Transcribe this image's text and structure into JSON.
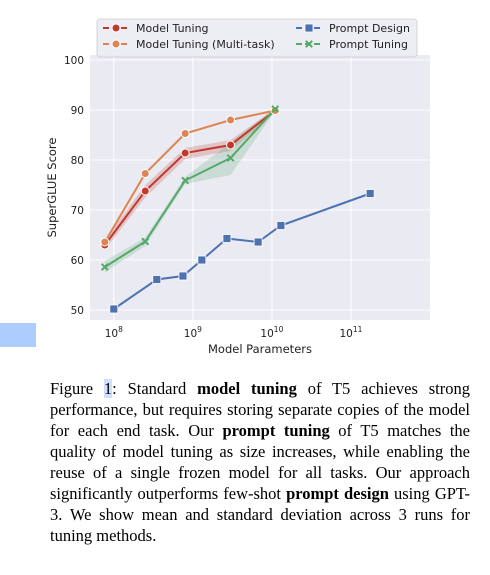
{
  "chart_data": {
    "type": "line",
    "xlabel": "Model Parameters",
    "ylabel": "SuperGLUE Score",
    "x_scale": "log",
    "xlim": [
      50000000,
      1000000000000
    ],
    "ylim": [
      48,
      101
    ],
    "x_ticks": [
      100000000,
      1000000000,
      10000000000,
      100000000000
    ],
    "x_tick_labels": [
      {
        "base": "10",
        "exp": "8"
      },
      {
        "base": "10",
        "exp": "9"
      },
      {
        "base": "10",
        "exp": "10"
      },
      {
        "base": "10",
        "exp": "11"
      }
    ],
    "y_ticks": [
      50,
      60,
      70,
      80,
      90,
      100
    ],
    "grid": true,
    "legend": "top",
    "series": [
      {
        "name": "Model Tuning",
        "color": "#c0392b",
        "marker": "circle",
        "x": [
          77000000,
          250000000,
          800000000,
          3000000000,
          11000000000
        ],
        "y": [
          63.0,
          73.8,
          81.4,
          83.0,
          89.9
        ],
        "band": [
          [
            62.0,
            64.0
          ],
          [
            72.5,
            75.0
          ],
          [
            80.2,
            82.4
          ],
          [
            81.8,
            84.0
          ],
          [
            89.5,
            90.2
          ]
        ]
      },
      {
        "name": "Model Tuning (Multi-task)",
        "color": "#dd8452",
        "marker": "circle",
        "x": [
          77000000,
          250000000,
          800000000,
          3000000000,
          11000000000
        ],
        "y": [
          63.6,
          77.3,
          85.3,
          88.0,
          89.9
        ],
        "band": null
      },
      {
        "name": "Prompt Design",
        "color": "#4c72b0",
        "marker": "square",
        "x": [
          100000000,
          350000000,
          750000000,
          1300000000,
          2700000000,
          6700000000,
          13000000000,
          175000000000
        ],
        "y": [
          50.2,
          56.1,
          56.8,
          60.0,
          64.3,
          63.6,
          66.9,
          73.3
        ],
        "band": null
      },
      {
        "name": "Prompt Tuning",
        "color": "#55a868",
        "marker": "x",
        "x": [
          77000000,
          250000000,
          800000000,
          3000000000,
          11000000000
        ],
        "y": [
          58.6,
          63.7,
          75.9,
          80.4,
          90.2
        ],
        "band": [
          [
            57.5,
            59.8
          ],
          [
            62.8,
            64.5
          ],
          [
            75.2,
            76.6
          ],
          [
            77.0,
            83.5
          ],
          [
            89.8,
            90.5
          ]
        ]
      }
    ]
  },
  "caption": {
    "figure_word": "Figure ",
    "figure_number": "1",
    "colon": ": Standard ",
    "bold1": "model tuning",
    "text1": " of T5 achieves strong performance, but requires storing separate copies of the model for each end task.  Our ",
    "bold2": "prompt tuning",
    "text2": " of T5 matches the quality of model tuning as size increases, while enabling the reuse of a single frozen model for all tasks. Our approach significantly outperforms few-shot ",
    "bold3": "prompt design",
    "text3": " using GPT-3. We show mean and standard deviation across 3 runs for tuning methods."
  }
}
